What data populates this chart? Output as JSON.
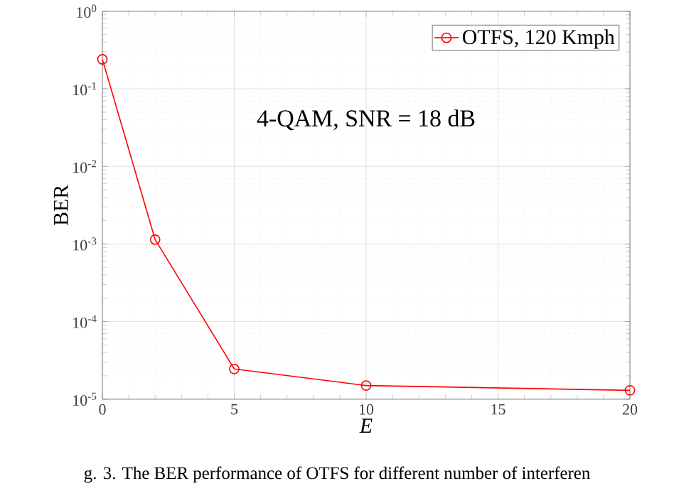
{
  "chart_data": {
    "type": "line",
    "xlabel": "*E*",
    "ylabel": "BER",
    "annotations": [
      "4-QAM, SNR = 18 dB",
      "g. 3.  The BER performance of OTFS for different number of interferen"
    ],
    "x": [
      0,
      2,
      5,
      10,
      20
    ],
    "series": [
      {
        "name": "OTFS, 120 Kmph",
        "color": "#ff0000",
        "values": [
          0.24,
          0.00114,
          2.45e-05,
          1.5e-05,
          1.3e-05
        ]
      }
    ],
    "log": "y",
    "xlim": [
      0,
      20
    ],
    "ylim": [
      1e-05,
      1
    ],
    "xticks": [
      0,
      5,
      10,
      15,
      20
    ],
    "yticks": [
      {
        "value": 1e-05,
        "label": "10$^{-5}$"
      },
      {
        "value": 0.0001,
        "label": "10$^{-4}$"
      },
      {
        "value": 0.001,
        "label": "10$^{-3}$"
      },
      {
        "value": 0.01,
        "label": "10$^{-2}$"
      },
      {
        "value": 0.1,
        "label": "10$^{-1}$"
      },
      {
        "value": 1,
        "label": "10$^{0}$"
      }
    ],
    "grid": true,
    "legend": "top right",
    "marker": "circle",
    "line_style": "solid"
  }
}
